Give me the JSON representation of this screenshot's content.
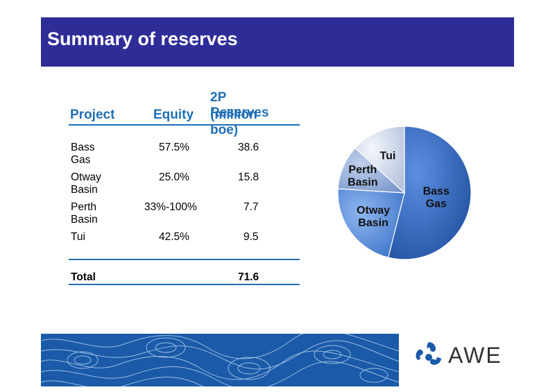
{
  "title": "Summary of reserves",
  "table": {
    "headers": {
      "project": "Project",
      "equity": "Equity",
      "reserves_line1": "2P Reserves",
      "reserves_line2": "(million boe)"
    },
    "rows": [
      {
        "project": "Bass Gas",
        "equity": "57.5%",
        "reserves": "38.6"
      },
      {
        "project": "Otway Basin",
        "equity": "25.0%",
        "reserves": "15.8"
      },
      {
        "project": "Perth Basin",
        "equity": "33%-100%",
        "reserves": "7.7"
      },
      {
        "project": "Tui",
        "equity": "42.5%",
        "reserves": "9.5"
      }
    ],
    "total": {
      "label": "Total",
      "reserves": "71.6"
    }
  },
  "chart_data": {
    "type": "pie",
    "categories": [
      "Bass Gas",
      "Otway Basin",
      "Perth Basin",
      "Tui"
    ],
    "values": [
      38.6,
      15.8,
      7.7,
      9.5
    ],
    "colors": [
      "#2b63b8",
      "#4a86d8",
      "#8aa6d6",
      "#c9d4e6"
    ],
    "labels": {
      "bass_gas_1": "Bass",
      "bass_gas_2": "Gas",
      "otway_1": "Otway",
      "otway_2": "Basin",
      "perth_1": "Perth",
      "perth_2": "Basin",
      "tui": "Tui"
    }
  },
  "logo": {
    "text": "AWE",
    "icon": "awe-logo-icon"
  },
  "colors": {
    "title_bar": "#2e2d98",
    "accent": "#1f6fb5",
    "footer": "#1a5aa8"
  }
}
